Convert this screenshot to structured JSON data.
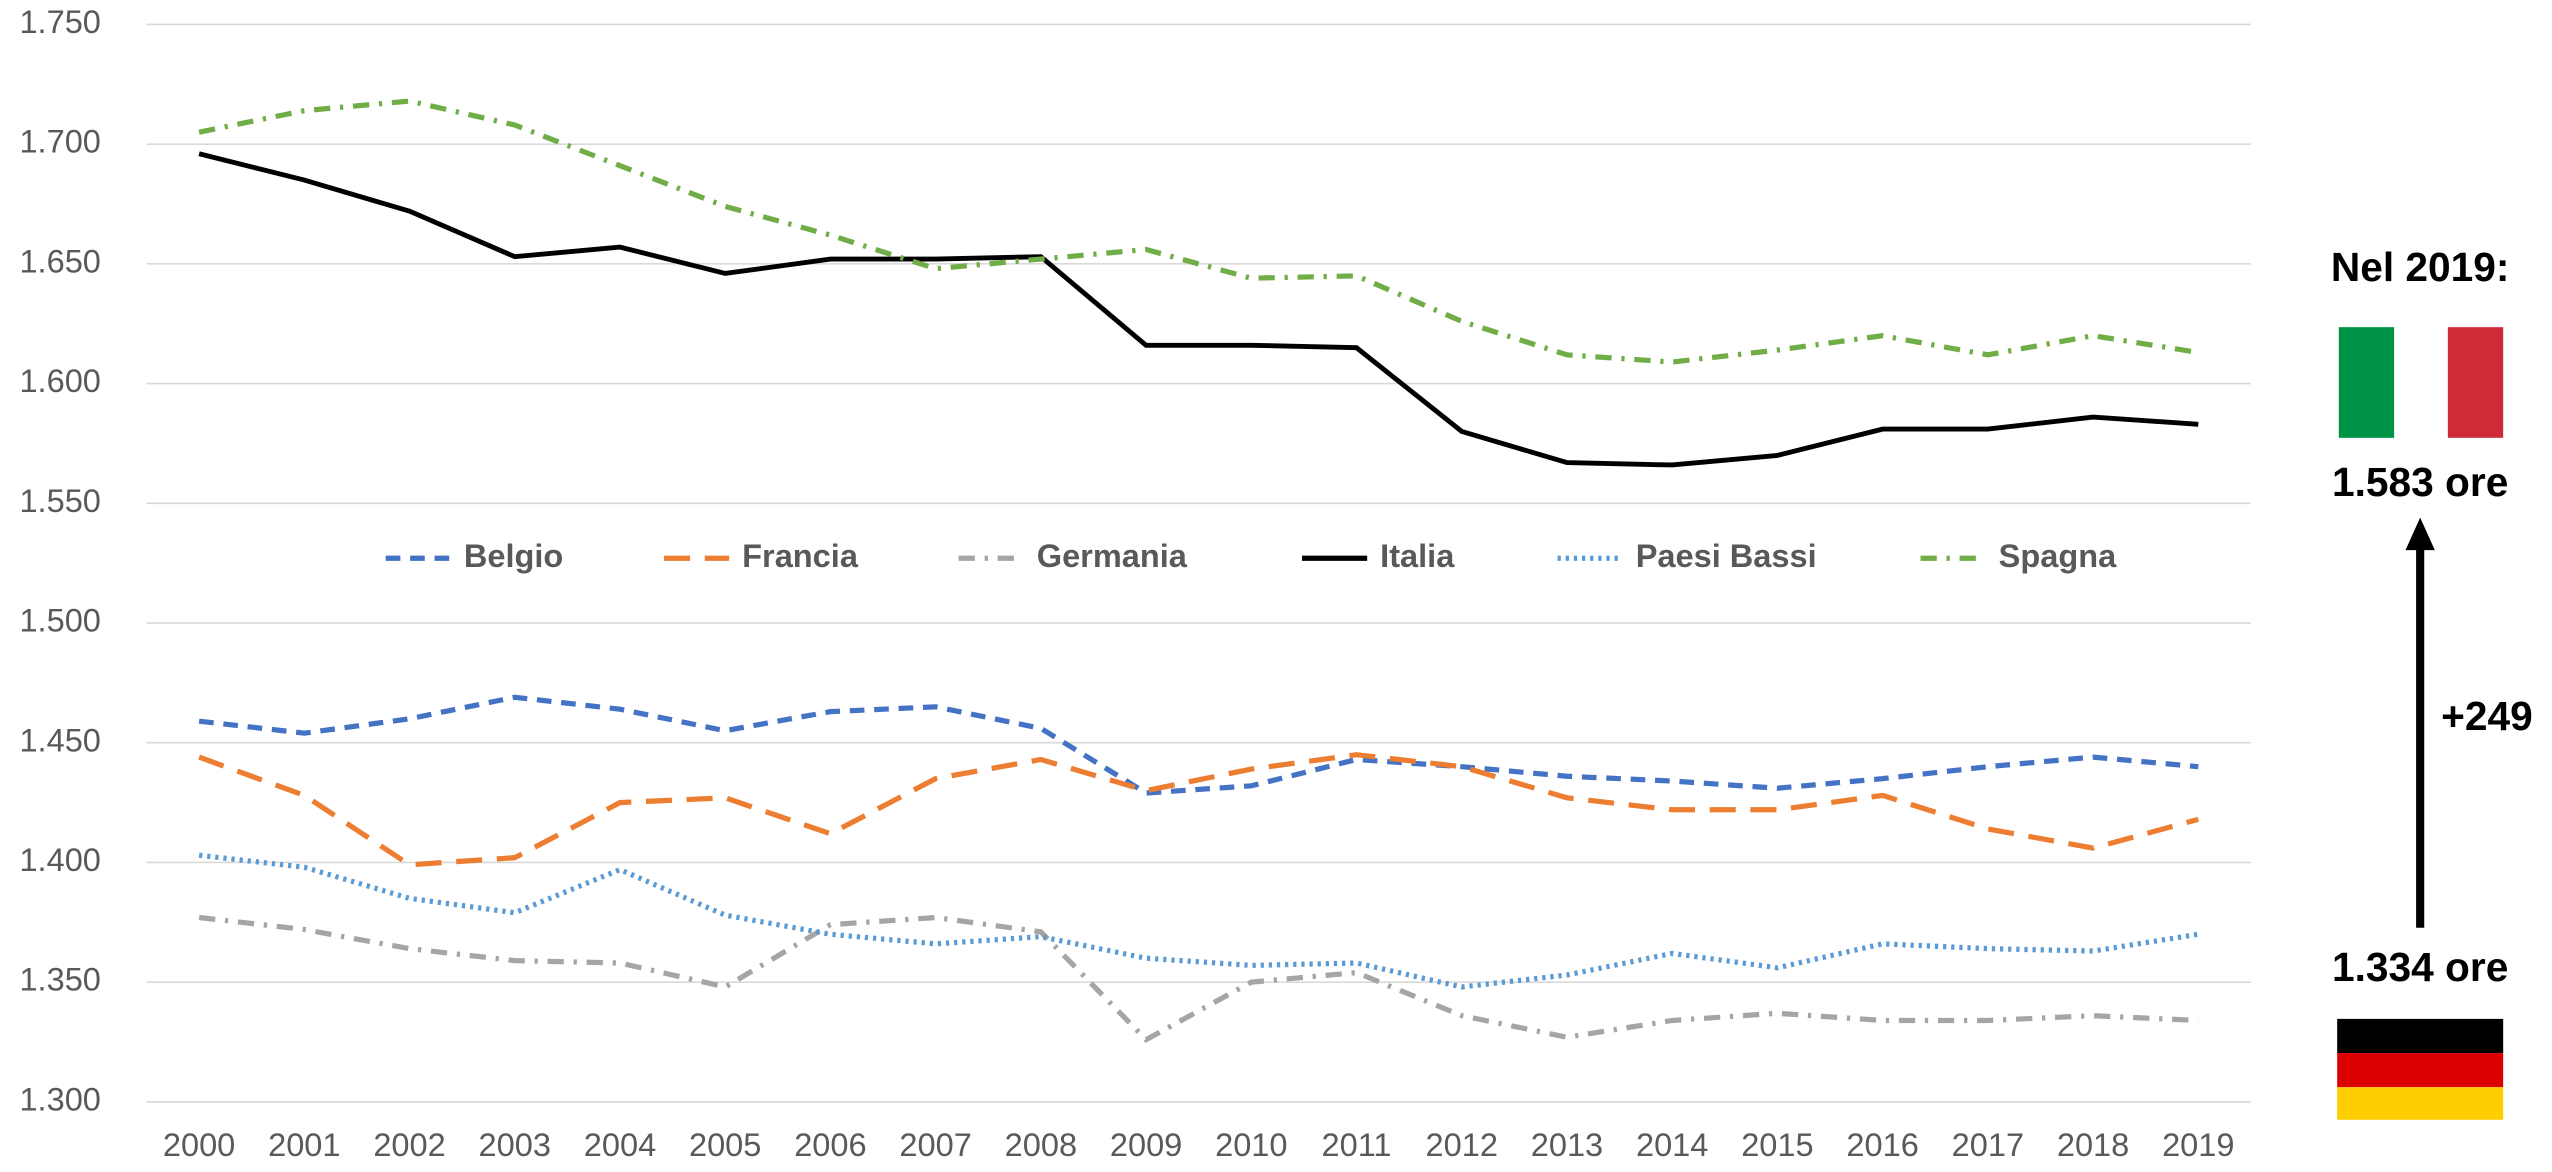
{
  "chart_data": {
    "type": "line",
    "categories": [
      "2000",
      "2001",
      "2002",
      "2003",
      "2004",
      "2005",
      "2006",
      "2007",
      "2008",
      "2009",
      "2010",
      "2011",
      "2012",
      "2013",
      "2014",
      "2015",
      "2016",
      "2017",
      "2018",
      "2019"
    ],
    "series": [
      {
        "name": "Belgio",
        "color": "#4472c4",
        "dash": "dashed",
        "values": [
          1459,
          1454,
          1460,
          1469,
          1464,
          1455,
          1463,
          1465,
          1456,
          1429,
          1432,
          1443,
          1440,
          1436,
          1434,
          1431,
          1435,
          1440,
          1444,
          1440
        ]
      },
      {
        "name": "Francia",
        "color": "#ed7d31",
        "dash": "long-dash",
        "values": [
          1444,
          1428,
          1399,
          1402,
          1425,
          1427,
          1412,
          1435,
          1443,
          1430,
          1439,
          1445,
          1440,
          1427,
          1422,
          1422,
          1428,
          1414,
          1406,
          1418
        ]
      },
      {
        "name": "Germania",
        "color": "#a5a5a5",
        "dash": "dash-dot",
        "values": [
          1377,
          1372,
          1364,
          1359,
          1358,
          1348,
          1374,
          1377,
          1371,
          1326,
          1350,
          1354,
          1336,
          1327,
          1334,
          1337,
          1334,
          1334,
          1336,
          1334
        ]
      },
      {
        "name": "Italia",
        "color": "#000000",
        "dash": "solid",
        "values": [
          1696,
          1685,
          1672,
          1653,
          1657,
          1646,
          1652,
          1652,
          1653,
          1616,
          1616,
          1615,
          1580,
          1567,
          1566,
          1570,
          1581,
          1581,
          1586,
          1583
        ]
      },
      {
        "name": "Paesi Bassi",
        "color": "#5b9bd5",
        "dash": "dotted",
        "values": [
          1403,
          1398,
          1385,
          1379,
          1397,
          1378,
          1370,
          1366,
          1369,
          1360,
          1357,
          1358,
          1348,
          1353,
          1362,
          1356,
          1366,
          1364,
          1363,
          1370
        ]
      },
      {
        "name": "Spagna",
        "color": "#70ad47",
        "dash": "dash-dot",
        "values": [
          1705,
          1714,
          1718,
          1708,
          1691,
          1674,
          1662,
          1648,
          1652,
          1656,
          1644,
          1645,
          1626,
          1612,
          1609,
          1614,
          1620,
          1612,
          1620,
          1613
        ]
      }
    ],
    "ylim": [
      1300,
      1750
    ],
    "yticks": [
      {
        "value": 1300,
        "label": "1.300"
      },
      {
        "value": 1350,
        "label": "1.350"
      },
      {
        "value": 1400,
        "label": "1.400"
      },
      {
        "value": 1450,
        "label": "1.450"
      },
      {
        "value": 1500,
        "label": "1.500"
      },
      {
        "value": 1550,
        "label": "1.550"
      },
      {
        "value": 1600,
        "label": "1.600"
      },
      {
        "value": 1650,
        "label": "1.650"
      },
      {
        "value": 1700,
        "label": "1.700"
      },
      {
        "value": 1750,
        "label": "1.750"
      }
    ],
    "grid": true,
    "legend": "center",
    "annotations": [
      "Nel 2019:",
      "1.583 ore",
      "1.334 ore",
      "+249"
    ]
  }
}
